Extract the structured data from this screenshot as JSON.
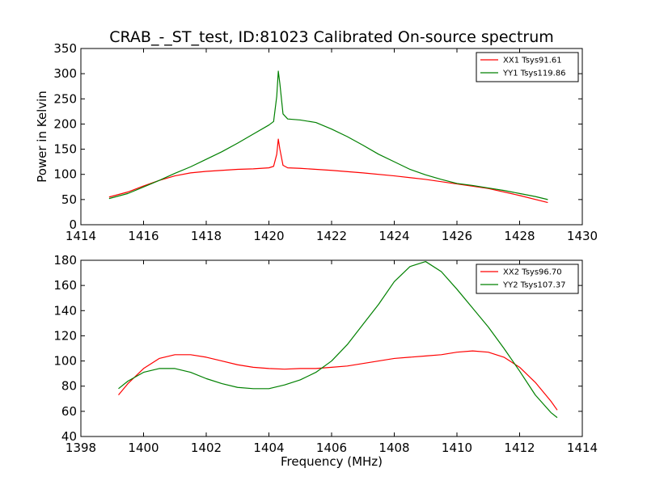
{
  "chart_data": [
    {
      "type": "line",
      "title": "CRAB_-_ST_test, ID:81023 Calibrated On-source spectrum",
      "xlabel": "",
      "ylabel": "Power in Kelvin",
      "xlim": [
        1414,
        1430
      ],
      "ylim": [
        0,
        350
      ],
      "xticks": [
        1414,
        1416,
        1418,
        1420,
        1422,
        1424,
        1426,
        1428,
        1430
      ],
      "yticks": [
        0,
        50,
        100,
        150,
        200,
        250,
        300,
        350
      ],
      "legend_position": "top-right",
      "series": [
        {
          "name": "XX1 Tsys91.61",
          "color": "#ff0000",
          "points": [
            [
              1414.9,
              55
            ],
            [
              1415.5,
              65
            ],
            [
              1416.0,
              77
            ],
            [
              1416.5,
              88
            ],
            [
              1417.0,
              97
            ],
            [
              1417.5,
              103
            ],
            [
              1418.0,
              106
            ],
            [
              1418.5,
              108
            ],
            [
              1419.0,
              110
            ],
            [
              1419.5,
              111
            ],
            [
              1420.0,
              113
            ],
            [
              1420.15,
              116
            ],
            [
              1420.25,
              140
            ],
            [
              1420.3,
              170
            ],
            [
              1420.35,
              150
            ],
            [
              1420.45,
              118
            ],
            [
              1420.6,
              113
            ],
            [
              1421.0,
              112
            ],
            [
              1421.5,
              110
            ],
            [
              1422.0,
              108
            ],
            [
              1423.0,
              103
            ],
            [
              1424.0,
              97
            ],
            [
              1425.0,
              90
            ],
            [
              1426.0,
              81
            ],
            [
              1427.0,
              72
            ],
            [
              1428.0,
              58
            ],
            [
              1428.9,
              44
            ]
          ]
        },
        {
          "name": "YY1 Tsys119.86",
          "color": "#008000",
          "points": [
            [
              1414.9,
              52
            ],
            [
              1415.5,
              62
            ],
            [
              1416.0,
              75
            ],
            [
              1416.5,
              88
            ],
            [
              1417.0,
              102
            ],
            [
              1417.5,
              115
            ],
            [
              1418.0,
              130
            ],
            [
              1418.5,
              145
            ],
            [
              1419.0,
              162
            ],
            [
              1419.5,
              180
            ],
            [
              1420.0,
              198
            ],
            [
              1420.15,
              205
            ],
            [
              1420.25,
              255
            ],
            [
              1420.3,
              305
            ],
            [
              1420.35,
              280
            ],
            [
              1420.45,
              220
            ],
            [
              1420.6,
              210
            ],
            [
              1421.0,
              208
            ],
            [
              1421.5,
              203
            ],
            [
              1422.0,
              190
            ],
            [
              1422.5,
              175
            ],
            [
              1423.0,
              158
            ],
            [
              1423.5,
              140
            ],
            [
              1424.0,
              125
            ],
            [
              1424.5,
              110
            ],
            [
              1425.0,
              99
            ],
            [
              1425.5,
              90
            ],
            [
              1426.0,
              82
            ],
            [
              1426.5,
              78
            ],
            [
              1427.0,
              73
            ],
            [
              1427.5,
              68
            ],
            [
              1428.0,
              62
            ],
            [
              1428.5,
              56
            ],
            [
              1428.9,
              50
            ]
          ]
        }
      ]
    },
    {
      "type": "line",
      "title": "",
      "xlabel": "Frequency (MHz)",
      "ylabel": "",
      "xlim": [
        1398,
        1414
      ],
      "ylim": [
        40,
        180
      ],
      "xticks": [
        1398,
        1400,
        1402,
        1404,
        1406,
        1408,
        1410,
        1412,
        1414
      ],
      "yticks": [
        40,
        60,
        80,
        100,
        120,
        140,
        160,
        180
      ],
      "legend_position": "top-right",
      "series": [
        {
          "name": "XX2 Tsys96.70",
          "color": "#ff0000",
          "points": [
            [
              1399.2,
              73
            ],
            [
              1399.5,
              82
            ],
            [
              1400.0,
              94
            ],
            [
              1400.5,
              102
            ],
            [
              1401.0,
              105
            ],
            [
              1401.5,
              105
            ],
            [
              1402.0,
              103
            ],
            [
              1402.5,
              100
            ],
            [
              1403.0,
              97
            ],
            [
              1403.5,
              95
            ],
            [
              1404.0,
              94
            ],
            [
              1404.5,
              93.5
            ],
            [
              1405.0,
              94
            ],
            [
              1405.5,
              94
            ],
            [
              1406.0,
              95
            ],
            [
              1406.5,
              96
            ],
            [
              1407.0,
              98
            ],
            [
              1407.5,
              100
            ],
            [
              1408.0,
              102
            ],
            [
              1408.5,
              103
            ],
            [
              1409.0,
              104
            ],
            [
              1409.5,
              105
            ],
            [
              1410.0,
              107
            ],
            [
              1410.5,
              108
            ],
            [
              1411.0,
              107
            ],
            [
              1411.5,
              103
            ],
            [
              1412.0,
              95
            ],
            [
              1412.5,
              83
            ],
            [
              1413.0,
              68
            ],
            [
              1413.2,
              61
            ]
          ]
        },
        {
          "name": "YY2 Tsys107.37",
          "color": "#008000",
          "points": [
            [
              1399.2,
              78
            ],
            [
              1399.5,
              84
            ],
            [
              1400.0,
              91
            ],
            [
              1400.5,
              94
            ],
            [
              1401.0,
              94
            ],
            [
              1401.5,
              91
            ],
            [
              1402.0,
              86
            ],
            [
              1402.5,
              82
            ],
            [
              1403.0,
              79
            ],
            [
              1403.5,
              78
            ],
            [
              1404.0,
              78
            ],
            [
              1404.5,
              81
            ],
            [
              1405.0,
              85
            ],
            [
              1405.5,
              91
            ],
            [
              1406.0,
              100
            ],
            [
              1406.5,
              113
            ],
            [
              1407.0,
              129
            ],
            [
              1407.5,
              145
            ],
            [
              1408.0,
              163
            ],
            [
              1408.5,
              175
            ],
            [
              1409.0,
              179
            ],
            [
              1409.5,
              171
            ],
            [
              1410.0,
              157
            ],
            [
              1410.5,
              142
            ],
            [
              1411.0,
              127
            ],
            [
              1411.5,
              110
            ],
            [
              1412.0,
              92
            ],
            [
              1412.5,
              73
            ],
            [
              1413.0,
              59
            ],
            [
              1413.2,
              55
            ]
          ]
        }
      ]
    }
  ]
}
